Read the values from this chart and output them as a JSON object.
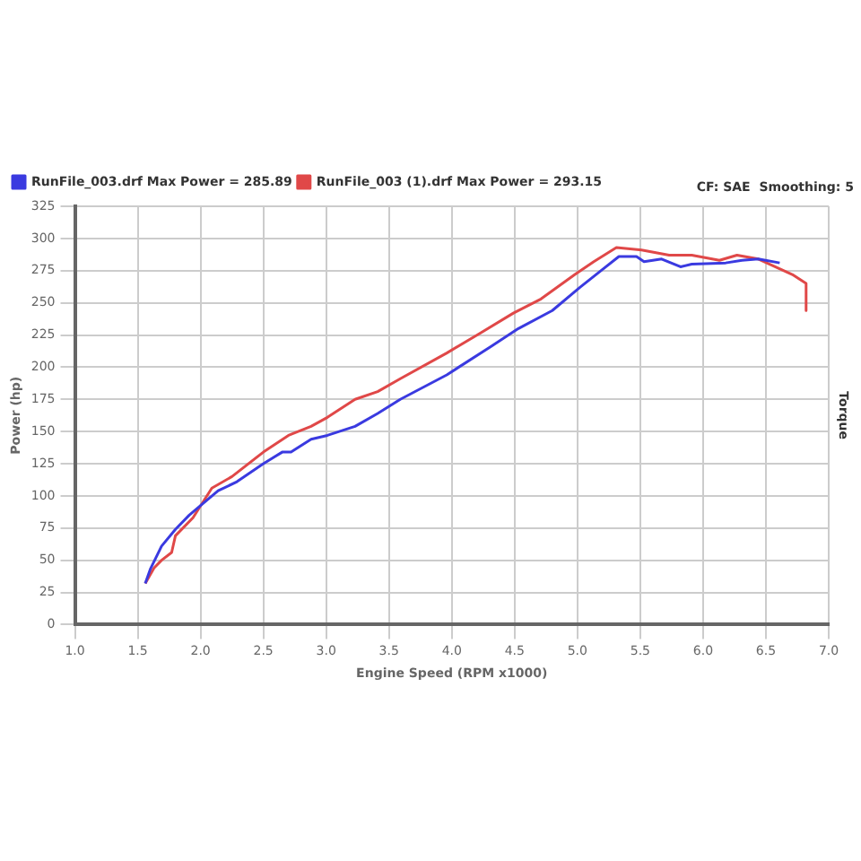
{
  "chart_data": {
    "type": "line",
    "xlabel": "Engine Speed (RPM x1000)",
    "ylabel": "Power (hp)",
    "y2label": "Torque",
    "annotations": [
      "CF: SAE  Smoothing: 5"
    ],
    "xlim": [
      1.0,
      7.0
    ],
    "xticks": [
      {
        "value": 1,
        "label": "1.0"
      },
      {
        "value": 1.5,
        "label": "1.5"
      },
      {
        "value": 2,
        "label": "2.0"
      },
      {
        "value": 2.5,
        "label": "2.5"
      },
      {
        "value": 3,
        "label": "3.0"
      },
      {
        "value": 3.5,
        "label": "3.5"
      },
      {
        "value": 4,
        "label": "4.0"
      },
      {
        "value": 4.5,
        "label": "4.5"
      },
      {
        "value": 5,
        "label": "5.0"
      },
      {
        "value": 5.5,
        "label": "5.5"
      },
      {
        "value": 6,
        "label": "6.0"
      },
      {
        "value": 6.5,
        "label": "6.5"
      },
      {
        "value": 7,
        "label": "7.0"
      }
    ],
    "ylim": [
      0,
      325
    ],
    "yticks": [
      0,
      25,
      50,
      75,
      100,
      125,
      150,
      175,
      200,
      225,
      250,
      275,
      300,
      325
    ],
    "grid": true,
    "legend": "top left",
    "marker": "none",
    "line_style": "solid",
    "series": [
      {
        "name": "RunFile_003.drf Max Power = 285.89",
        "color": "#3a3ae0",
        "x": [
          1.56,
          1.6,
          1.69,
          1.8,
          1.91,
          2.03,
          2.14,
          2.29,
          2.5,
          2.65,
          2.72,
          2.88,
          3.01,
          3.23,
          3.41,
          3.59,
          3.96,
          4.31,
          4.53,
          4.8,
          5.02,
          5.2,
          5.33,
          5.47,
          5.53,
          5.67,
          5.82,
          5.91,
          6.18,
          6.31,
          6.44,
          6.61
        ],
        "values": [
          32,
          43,
          61,
          74,
          85,
          95,
          104,
          111,
          125,
          134,
          134,
          144,
          147,
          154,
          164,
          175,
          194,
          216,
          230,
          244,
          262,
          276,
          286,
          286,
          282,
          284,
          278,
          280,
          281,
          283,
          284,
          281
        ]
      },
      {
        "name": "RunFile_003 (1).drf Max Power = 293.15",
        "color": "#e04848",
        "x": [
          1.56,
          1.63,
          1.69,
          1.77,
          1.8,
          1.94,
          2.09,
          2.25,
          2.5,
          2.7,
          2.88,
          3.01,
          3.23,
          3.41,
          3.59,
          3.96,
          4.22,
          4.49,
          4.71,
          4.98,
          5.13,
          5.31,
          5.51,
          5.73,
          5.91,
          6.13,
          6.27,
          6.44,
          6.62,
          6.71,
          6.82,
          6.82
        ],
        "values": [
          32,
          44,
          50,
          56,
          69,
          83,
          106,
          115,
          134,
          147,
          154,
          161,
          175,
          181,
          191,
          211,
          226,
          242,
          253,
          272,
          282,
          293,
          291,
          287,
          287,
          283,
          287,
          284,
          276,
          272,
          265,
          244
        ]
      }
    ]
  }
}
